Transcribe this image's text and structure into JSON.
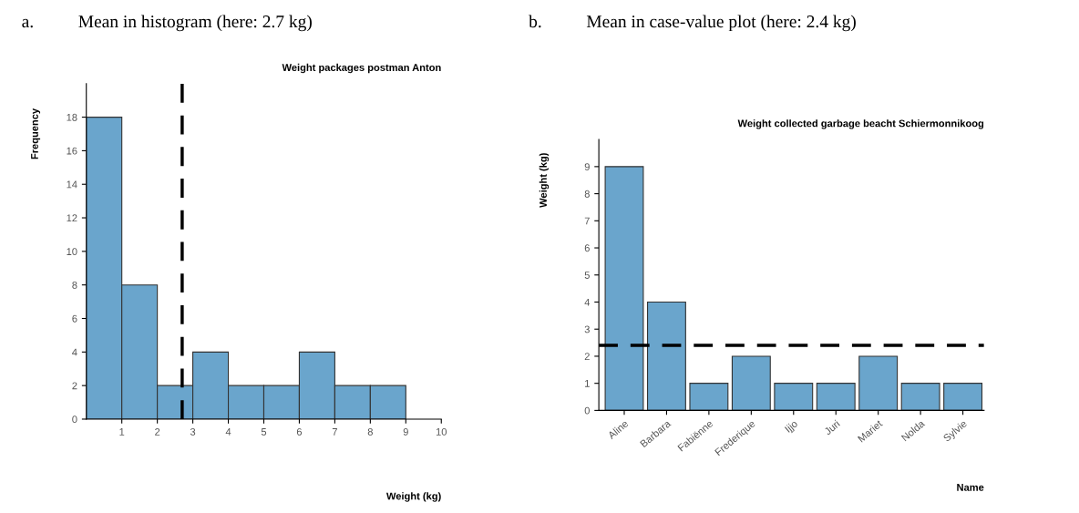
{
  "chart_data": [
    {
      "type": "histogram",
      "title": "a.          Mean in histogram (here: 2.7 kg)",
      "subtitle": "Weight packages postman Anton",
      "xlabel": "Weight (kg)",
      "ylabel": "Frequency",
      "bins": [
        0,
        1,
        2,
        3,
        4,
        5,
        6,
        7,
        8,
        9
      ],
      "values": [
        18,
        8,
        2,
        4,
        2,
        2,
        4,
        2,
        2
      ],
      "color": "#6aa5cc",
      "xlim": [
        0,
        10
      ],
      "xticks": [
        1,
        2,
        3,
        4,
        5,
        6,
        7,
        8,
        9,
        10
      ],
      "ylim": [
        0,
        20
      ],
      "yticks": [
        0,
        2,
        4,
        6,
        8,
        10,
        12,
        14,
        16,
        18
      ],
      "grid": false,
      "ref_lines": [
        {
          "axis": "x",
          "value": 2.7,
          "color": "#000000",
          "line_style": "dashed"
        }
      ]
    },
    {
      "type": "bar",
      "title": "b.          Mean in case-value plot (here: 2.4 kg)",
      "subtitle": "Weight collected garbage beacht Schiermonnikoog",
      "xlabel": "Name",
      "ylabel": "Weight (kg)",
      "categories": [
        "Aline",
        "Barbara",
        "Fabiënne",
        "Frederique",
        "Ijjo",
        "Juri",
        "Mariet",
        "Nolda",
        "Sylvie"
      ],
      "values": [
        9,
        4,
        1,
        2,
        1,
        1,
        2,
        1,
        1
      ],
      "color": "#6aa5cc",
      "ylim": [
        0,
        10
      ],
      "yticks": [
        0,
        1,
        2,
        3,
        4,
        5,
        6,
        7,
        8,
        9
      ],
      "grid": false,
      "ref_lines": [
        {
          "axis": "y",
          "value": 2.4,
          "color": "#000000",
          "line_style": "dashed"
        }
      ]
    }
  ]
}
